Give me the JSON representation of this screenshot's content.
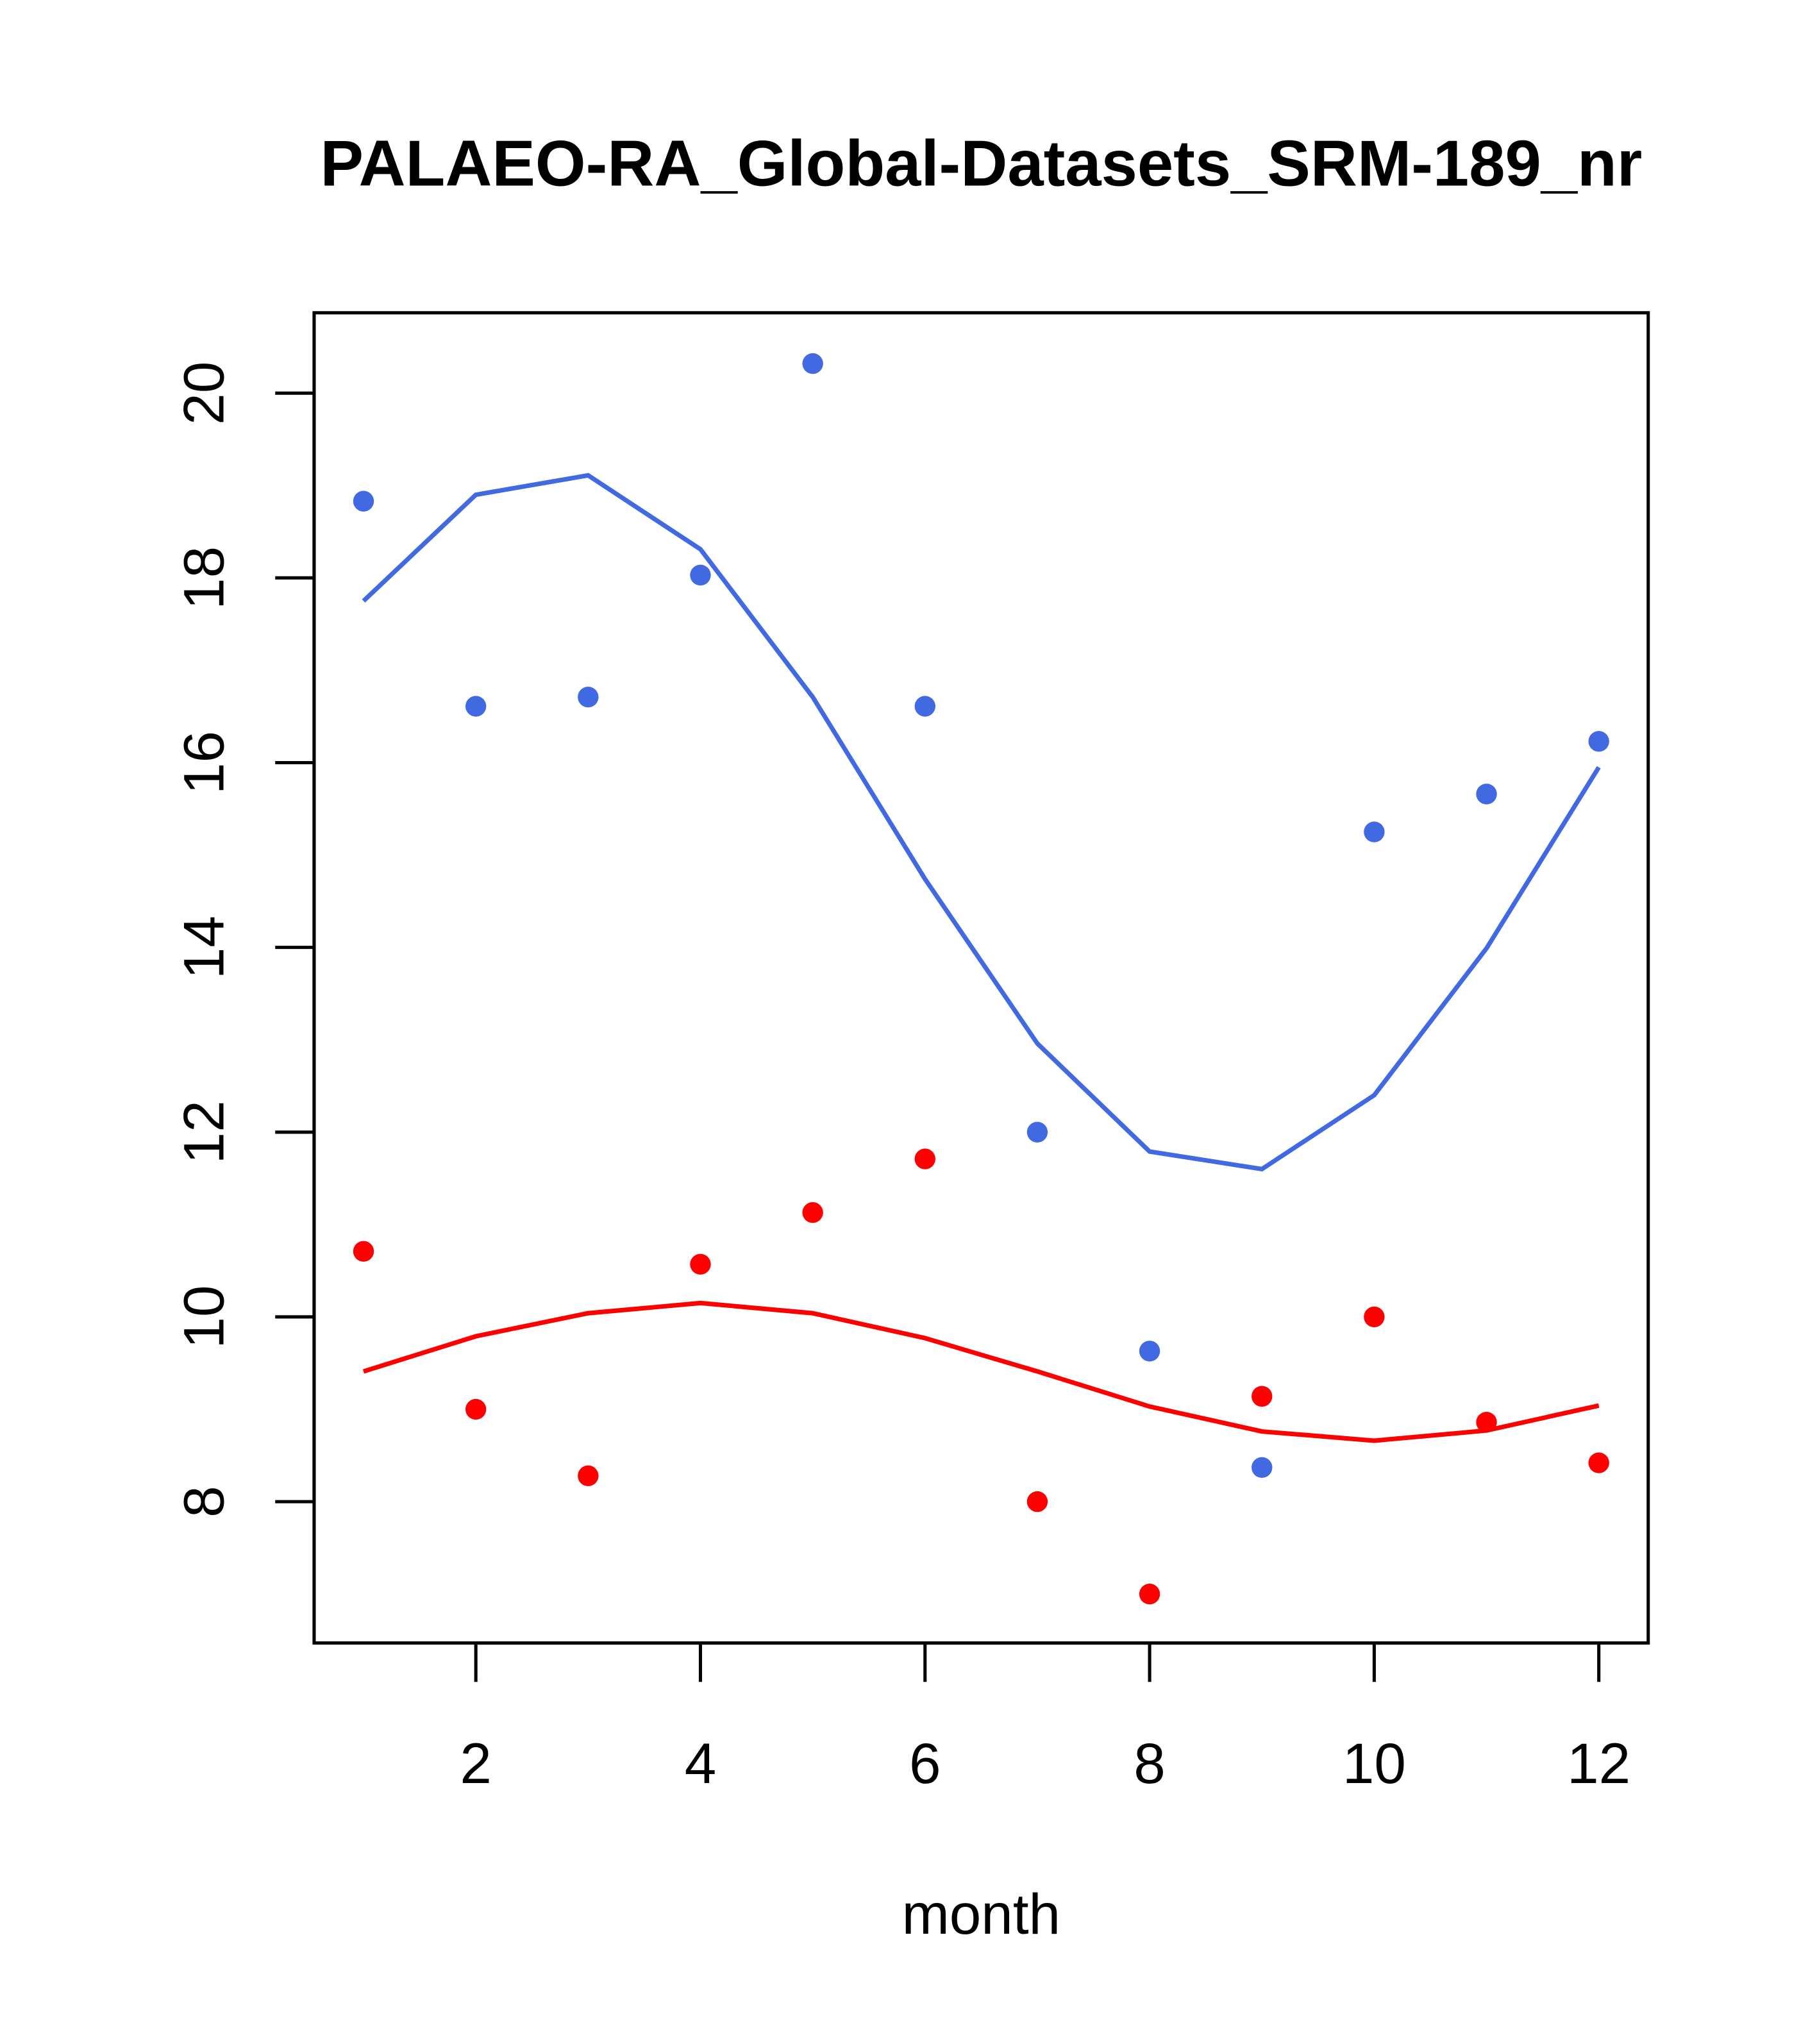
{
  "chart_data": {
    "type": "scatter",
    "title": "PALAEO-RA_Global-Datasets_SRM-189_nr",
    "xlabel": "month",
    "ylabel": "",
    "xlim": [
      0.56,
      12.44
    ],
    "ylim": [
      6.47,
      20.87
    ],
    "xticks": [
      2,
      4,
      6,
      8,
      10,
      12
    ],
    "yticks": [
      8,
      10,
      12,
      14,
      16,
      18,
      20
    ],
    "grid": false,
    "x": [
      1,
      2,
      3,
      4,
      5,
      6,
      7,
      8,
      9,
      10,
      11,
      12
    ],
    "series": [
      {
        "name": "blue-points",
        "kind": "points",
        "color": "#4169E1",
        "values": [
          18.83,
          16.61,
          16.71,
          18.03,
          20.32,
          16.61,
          12.0,
          9.63,
          8.37,
          15.25,
          15.66,
          16.23
        ]
      },
      {
        "name": "blue-line",
        "kind": "line",
        "color": "#4169E1",
        "values": [
          17.75,
          18.9,
          19.11,
          18.31,
          16.71,
          14.74,
          12.96,
          11.79,
          11.6,
          12.4,
          13.99,
          15.95
        ]
      },
      {
        "name": "red-points",
        "kind": "points",
        "color": "#FF0000",
        "values": [
          10.71,
          9.0,
          8.28,
          10.57,
          11.13,
          11.71,
          8.0,
          7.0,
          9.14,
          10.0,
          8.86,
          8.42
        ]
      },
      {
        "name": "red-line",
        "kind": "line",
        "color": "#FF0000",
        "values": [
          9.41,
          9.79,
          10.04,
          10.15,
          10.04,
          9.77,
          9.41,
          9.03,
          8.76,
          8.66,
          8.77,
          9.04
        ]
      }
    ]
  }
}
